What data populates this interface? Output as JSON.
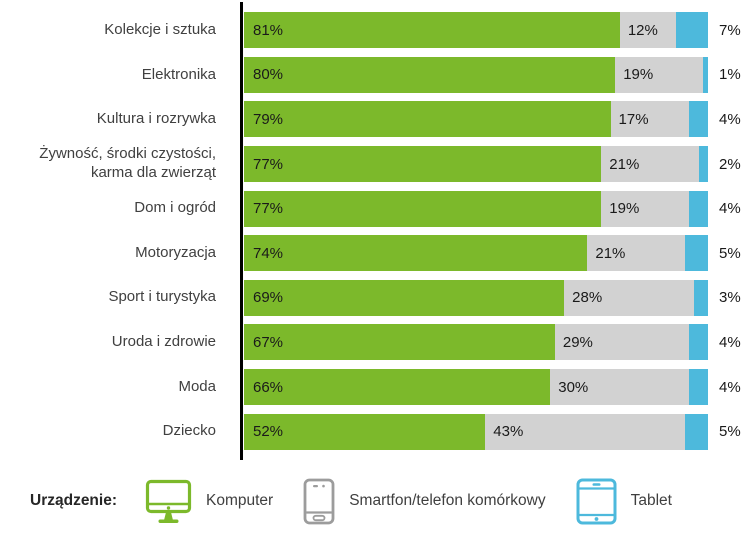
{
  "chart_data": {
    "type": "bar",
    "orientation": "horizontal",
    "stacked": true,
    "unit": "%",
    "xlim": [
      0,
      100
    ],
    "grid": false,
    "legend_position": "bottom",
    "axis_line_color": "#000000",
    "categories": [
      "Kolekcje i sztuka",
      "Elektronika",
      "Kultura i rozrywka",
      "Żywność, środki czystości, karma dla zwierząt",
      "Dom i ogród",
      "Motoryzacja",
      "Sport i turystyka",
      "Uroda i zdrowie",
      "Moda",
      "Dziecko"
    ],
    "series": [
      {
        "name": "Komputer",
        "color": "#7CB92B",
        "label_position": "inside",
        "values": [
          81,
          80,
          79,
          77,
          77,
          74,
          69,
          67,
          66,
          52
        ]
      },
      {
        "name": "Smartfon/telefon komórkowy",
        "color": "#D2D2D2",
        "label_position": "inside",
        "values": [
          12,
          19,
          17,
          21,
          19,
          21,
          28,
          29,
          30,
          43
        ]
      },
      {
        "name": "Tablet",
        "color": "#4DB9DC",
        "label_position": "outside",
        "values": [
          7,
          1,
          4,
          2,
          4,
          5,
          3,
          4,
          4,
          5
        ]
      }
    ]
  },
  "legend": {
    "title": "Urządzenie:",
    "items": [
      {
        "label": "Komputer",
        "icon": "computer-icon",
        "color": "#7CB92B"
      },
      {
        "label": "Smartfon/telefon komórkowy",
        "icon": "smartphone-icon",
        "color": "#9C9C9C"
      },
      {
        "label": "Tablet",
        "icon": "tablet-icon",
        "color": "#4DB9DC"
      }
    ]
  }
}
